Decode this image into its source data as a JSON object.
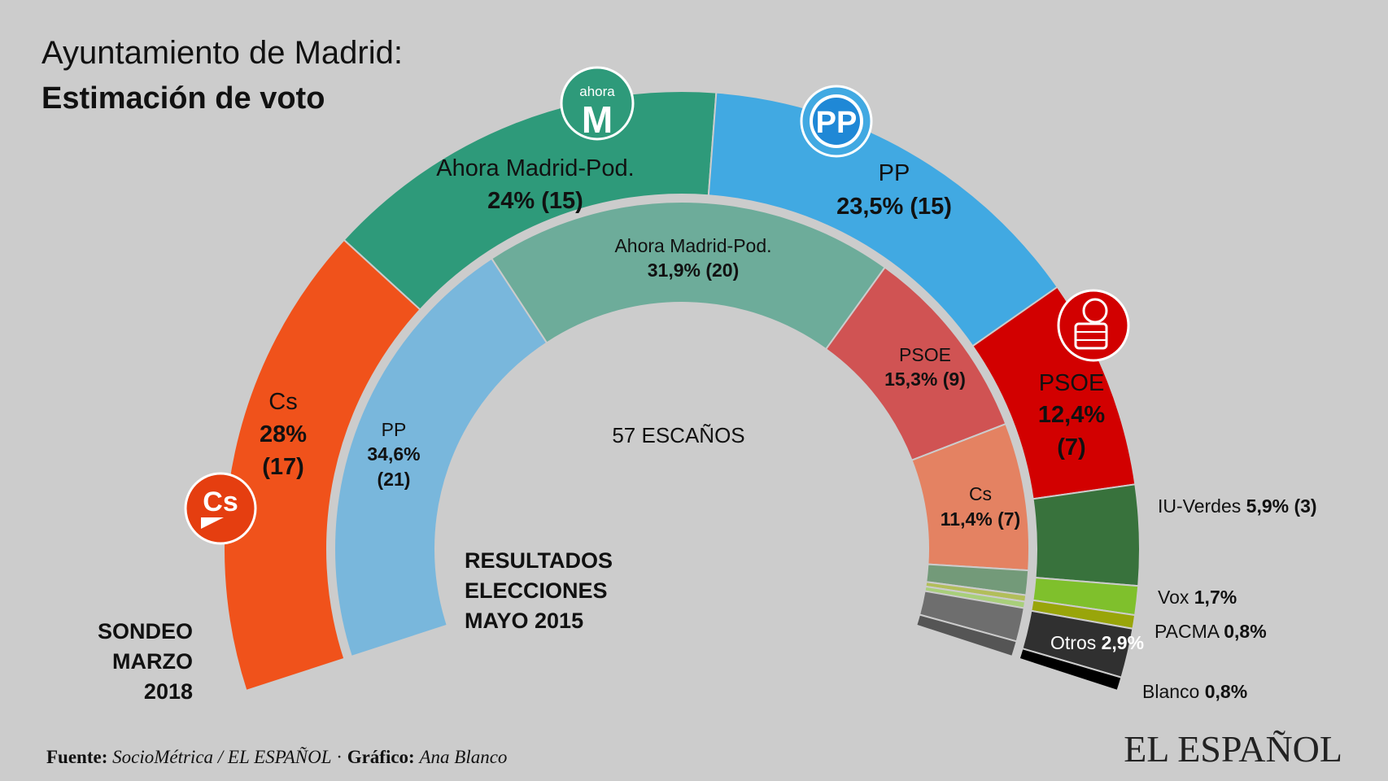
{
  "header": {
    "title_line1": "Ayuntamiento de Madrid:",
    "title_line2": "Estimación de voto"
  },
  "center_label": "57 ESCAÑOS",
  "inner_ring_caption": [
    "RESULTADOS",
    "ELECCIONES",
    "MAYO 2015"
  ],
  "outer_ring_caption": [
    "SONDEO",
    "MARZO",
    "2018"
  ],
  "footer": {
    "source_label": "Fuente:",
    "source": "SocioMétrica / EL ESPAÑOL",
    "separator": "·",
    "graphic_label": "Gráfico:",
    "graphic": "Ana Blanco"
  },
  "brand": "EL ESPAÑOL",
  "logos": {
    "ahora_madrid": "ahora M",
    "pp": "PP",
    "cs": "Cs"
  },
  "chart_data": [
    {
      "type": "pie",
      "title": "SONDEO MARZO 2018",
      "subtype": "half-donut-outer-ring",
      "series": [
        {
          "name": "Cs",
          "value": 28,
          "seats": 17,
          "label": "28%",
          "seats_label": "(17)",
          "color": "#f0521b"
        },
        {
          "name": "Ahora Madrid-Pod.",
          "value": 24,
          "seats": 15,
          "label": "24% (15)",
          "color": "#2e9a7a"
        },
        {
          "name": "PP",
          "value": 23.5,
          "seats": 15,
          "label": "23,5% (15)",
          "color": "#41a9e2"
        },
        {
          "name": "PSOE",
          "value": 12.4,
          "seats": 7,
          "label": "12,4%",
          "seats_label": "(7)",
          "color": "#d20000"
        },
        {
          "name": "IU-Verdes",
          "value": 5.9,
          "seats": 3,
          "label": "5,9% (3)",
          "color": "#38723c"
        },
        {
          "name": "Vox",
          "value": 1.7,
          "label": "1,7%",
          "color": "#7fc02c"
        },
        {
          "name": "PACMA",
          "value": 0.8,
          "label": "0,8%",
          "color": "#99a50a"
        },
        {
          "name": "Otros",
          "value": 2.9,
          "label": "2,9%",
          "color": "#303030"
        },
        {
          "name": "Blanco",
          "value": 0.8,
          "label": "0,8%",
          "color": "#000000"
        }
      ]
    },
    {
      "type": "pie",
      "title": "RESULTADOS ELECCIONES MAYO 2015",
      "subtype": "half-donut-inner-ring",
      "series": [
        {
          "name": "PP",
          "value": 34.6,
          "seats": 21,
          "label": "34,6%",
          "seats_label": "(21)",
          "color": "#79b7dc"
        },
        {
          "name": "Ahora Madrid-Pod.",
          "value": 31.9,
          "seats": 20,
          "label": "31,9% (20)",
          "color": "#6dac9a"
        },
        {
          "name": "PSOE",
          "value": 15.3,
          "seats": 9,
          "label": "15,3% (9)",
          "color": "#d05353"
        },
        {
          "name": "Cs",
          "value": 11.4,
          "seats": 7,
          "label": "11,4% (7)",
          "color": "#e48262"
        },
        {
          "value": 1.9,
          "color": "#739a79"
        },
        {
          "value": 0.5,
          "color": "#b2be5a"
        },
        {
          "value": 0.5,
          "color": "#a8cf7a"
        },
        {
          "value": 2.6,
          "color": "#6e6e6e"
        },
        {
          "value": 1.2,
          "color": "#555555"
        }
      ]
    }
  ]
}
